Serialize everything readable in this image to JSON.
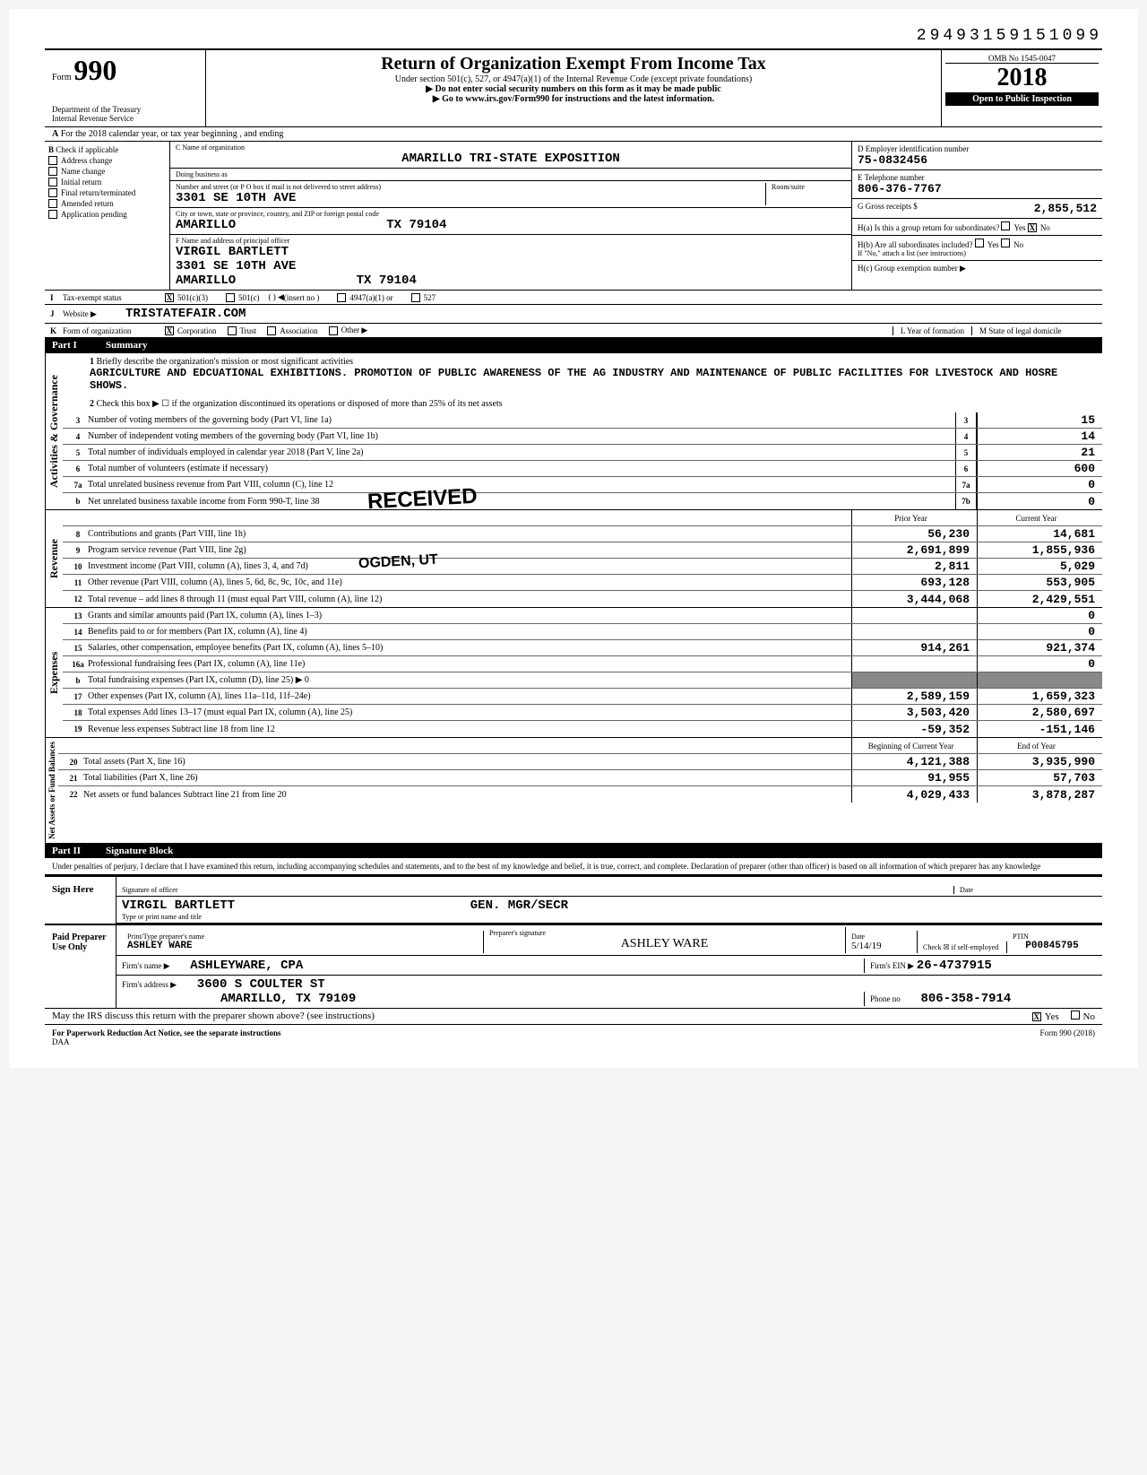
{
  "top_number": "29493159151099",
  "header": {
    "form_label": "Form",
    "form_number": "990",
    "dept": "Department of the Treasury\nInternal Revenue Service",
    "title": "Return of Organization Exempt From Income Tax",
    "subtitle1": "Under section 501(c), 527, or 4947(a)(1) of the Internal Revenue Code (except private foundations)",
    "subtitle2": "▶ Do not enter social security numbers on this form as it may be made public",
    "subtitle3": "▶ Go to www.irs.gov/Form990 for instructions and the latest information.",
    "omb": "OMB No 1545-0047",
    "year": "2018",
    "inspect": "Open to Public Inspection"
  },
  "row_a": "For the 2018 calendar year, or tax year beginning                    , and ending",
  "section_b": {
    "header": "Check if applicable",
    "items": [
      "Address change",
      "Name change",
      "Initial return",
      "Final return/terminated",
      "Amended return",
      "Application pending"
    ],
    "c_label": "C Name of organization",
    "org_name": "AMARILLO TRI-STATE EXPOSITION",
    "dba_label": "Doing business as",
    "addr_label": "Number and street (or P O  box if mail is not delivered to street address)",
    "addr": "3301 SE 10TH AVE",
    "room_label": "Room/suite",
    "city_label": "City or town, state or province, country, and ZIP or foreign postal code",
    "city": "AMARILLO                    TX 79104",
    "f_label": "F Name and address of principal officer",
    "officer_name": "VIRGIL BARTLETT",
    "officer_addr": "3301 SE 10TH AVE",
    "officer_city": "AMARILLO                TX 79104",
    "d_label": "D Employer identification number",
    "ein": "75-0832456",
    "e_label": "E Telephone number",
    "phone": "806-376-7767",
    "g_label": "G Gross receipts $",
    "gross": "2,855,512",
    "ha_label": "H(a) Is this a group return for subordinates?",
    "hb_label": "H(b) Are all subordinates included?",
    "hc_note": "If \"No,\" attach a list (see instructions)",
    "hc_label": "H(c) Group exemption number ▶"
  },
  "status": {
    "i_label": "Tax-exempt status",
    "opt1": "501(c)(3)",
    "opt2": "501(c)",
    "opt3": "(insert no )",
    "opt4": "4947(a)(1) or",
    "opt5": "527",
    "j_label": "Website ▶",
    "website": "TRISTATEFAIR.COM",
    "k_label": "Form of organization",
    "k_opts": [
      "Corporation",
      "Trust",
      "Association",
      "Other ▶"
    ],
    "l_label": "L Year of formation",
    "m_label": "M State of legal domicile"
  },
  "part1": {
    "header_part": "Part I",
    "header_title": "Summary",
    "line1_label": "Briefly describe the organization's mission or most significant activities",
    "mission": "AGRICULTURE AND EDCUATIONAL EXHIBITIONS.  PROMOTION OF PUBLIC AWARENESS OF THE AG INDUSTRY AND MAINTENANCE OF PUBLIC FACILITIES FOR LIVESTOCK AND HOSRE SHOWS.",
    "line2": "Check this box ▶ ☐ if the organization discontinued its operations or disposed of more than 25% of its net assets",
    "governance_label": "Activities & Governance",
    "revenue_label": "Revenue",
    "expenses_label": "Expenses",
    "netassets_label": "Net Assets or Fund Balances",
    "governance_rows": [
      {
        "n": "3",
        "d": "Number of voting members of the governing body (Part VI, line 1a)",
        "box": "3",
        "v": "15"
      },
      {
        "n": "4",
        "d": "Number of independent voting members of the governing body (Part VI, line 1b)",
        "box": "4",
        "v": "14"
      },
      {
        "n": "5",
        "d": "Total number of individuals employed in calendar year 2018 (Part V, line 2a)",
        "box": "5",
        "v": "21"
      },
      {
        "n": "6",
        "d": "Total number of volunteers (estimate if necessary)",
        "box": "6",
        "v": "600"
      },
      {
        "n": "7a",
        "d": "Total unrelated business revenue from Part VIII, column (C), line 12",
        "box": "7a",
        "v": "0"
      },
      {
        "n": "b",
        "d": "Net unrelated business taxable income from Form 990-T, line 38",
        "box": "7b",
        "v": "0"
      }
    ],
    "prior_label": "Prior Year",
    "current_label": "Current Year",
    "revenue_rows": [
      {
        "n": "8",
        "d": "Contributions and grants (Part VIII, line 1h)",
        "p": "56,230",
        "c": "14,681"
      },
      {
        "n": "9",
        "d": "Program service revenue (Part VIII, line 2g)",
        "p": "2,691,899",
        "c": "1,855,936"
      },
      {
        "n": "10",
        "d": "Investment income (Part VIII, column (A), lines 3, 4, and 7d)",
        "p": "2,811",
        "c": "5,029"
      },
      {
        "n": "11",
        "d": "Other revenue (Part VIII, column (A), lines 5, 6d, 8c, 9c, 10c, and 11e)",
        "p": "693,128",
        "c": "553,905"
      },
      {
        "n": "12",
        "d": "Total revenue – add lines 8 through 11 (must equal Part VIII, column (A), line 12)",
        "p": "3,444,068",
        "c": "2,429,551"
      }
    ],
    "expense_rows": [
      {
        "n": "13",
        "d": "Grants and similar amounts paid (Part IX, column (A), lines 1–3)",
        "p": "",
        "c": "0"
      },
      {
        "n": "14",
        "d": "Benefits paid to or for members (Part IX, column (A), line 4)",
        "p": "",
        "c": "0"
      },
      {
        "n": "15",
        "d": "Salaries, other compensation, employee benefits (Part IX, column (A), lines 5–10)",
        "p": "914,261",
        "c": "921,374"
      },
      {
        "n": "16a",
        "d": "Professional fundraising fees (Part IX, column (A), line 11e)",
        "p": "",
        "c": "0"
      },
      {
        "n": "b",
        "d": "Total fundraising expenses (Part IX, column (D), line 25) ▶                              0",
        "p": "gray",
        "c": "gray"
      },
      {
        "n": "17",
        "d": "Other expenses (Part IX, column (A), lines 11a–11d, 11f–24e)",
        "p": "2,589,159",
        "c": "1,659,323"
      },
      {
        "n": "18",
        "d": "Total expenses  Add lines 13–17 (must equal Part IX, column (A), line 25)",
        "p": "3,503,420",
        "c": "2,580,697"
      },
      {
        "n": "19",
        "d": "Revenue less expenses  Subtract line 18 from line 12",
        "p": "-59,352",
        "c": "-151,146"
      }
    ],
    "begin_label": "Beginning of Current Year",
    "end_label": "End of Year",
    "asset_rows": [
      {
        "n": "20",
        "d": "Total assets (Part X, line 16)",
        "p": "4,121,388",
        "c": "3,935,990"
      },
      {
        "n": "21",
        "d": "Total liabilities (Part X, line 26)",
        "p": "91,955",
        "c": "57,703"
      },
      {
        "n": "22",
        "d": "Net assets or fund balances  Subtract line 21 from line 20",
        "p": "4,029,433",
        "c": "3,878,287"
      }
    ],
    "stamp_received": "RECEIVED",
    "stamp_ogden": "OGDEN, UT"
  },
  "part2": {
    "header_part": "Part II",
    "header_title": "Signature Block",
    "perjury": "Under penalties of perjury, I declare that I have examined this return, including accompanying schedules and statements, and to the best of my knowledge and belief, it is true, correct, and complete. Declaration of preparer (other than officer) is based on all information of which preparer has any knowledge",
    "sign_here": "Sign Here",
    "sig_officer_label": "Signature of officer",
    "date_label": "Date",
    "officer_name": "VIRGIL BARTLETT",
    "officer_title": "GEN. MGR/SECR",
    "type_label": "Type or print name and title",
    "paid_label": "Paid Preparer Use Only",
    "prep_name_label": "Print/Type preparer's name",
    "prep_name": "ASHLEY WARE",
    "prep_sig_label": "Preparer's signature",
    "prep_sig": "ASHLEY WARE",
    "prep_date": "5/14/19",
    "check_label": "Check ☒ if self-employed",
    "ptin_label": "PTIN",
    "ptin": "P00845795",
    "firm_name_label": "Firm's name ▶",
    "firm_name": "ASHLEYWARE, CPA",
    "firm_ein_label": "Firm's EIN ▶",
    "firm_ein": "26-4737915",
    "firm_addr_label": "Firm's address ▶",
    "firm_addr1": "3600 S COULTER ST",
    "firm_addr2": "AMARILLO, TX  79109",
    "phone_label": "Phone no",
    "firm_phone": "806-358-7914",
    "discuss": "May the IRS discuss this return with the preparer shown above? (see instructions)",
    "discuss_yes": "Yes",
    "discuss_no": "No"
  },
  "footer": {
    "left": "For Paperwork Reduction Act Notice, see the separate instructions",
    "daa": "DAA",
    "right": "Form 990 (2018)"
  }
}
